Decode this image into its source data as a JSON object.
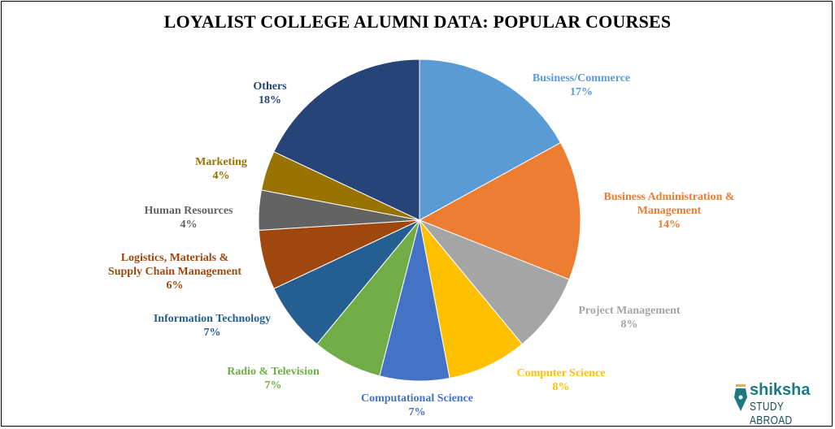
{
  "title": "LOYALIST COLLEGE ALUMNI DATA: POPULAR COURSES",
  "logo": {
    "name": "shiksha",
    "sub": "STUDY ABROAD"
  },
  "chart_data": {
    "type": "pie",
    "title": "LOYALIST COLLEGE ALUMNI DATA: POPULAR COURSES",
    "categories": [
      "Business/Commerce",
      "Business Administration & Management",
      "Project Management",
      "Computer Science",
      "Computational Science",
      "Radio & Television",
      "Information Technology",
      "Logistics, Materials & Supply Chain Management",
      "Human Resources",
      "Marketing",
      "Others"
    ],
    "values": [
      17,
      14,
      8,
      8,
      7,
      7,
      7,
      6,
      4,
      4,
      18
    ],
    "colors": [
      "#5b9bd5",
      "#ed7d31",
      "#a5a5a5",
      "#ffc000",
      "#4472c4",
      "#70ad47",
      "#255e91",
      "#9e480e",
      "#636363",
      "#997300",
      "#264478"
    ],
    "legend": "data labels outside slices"
  },
  "labels": [
    {
      "line1": "Business/Commerce",
      "line2": "17%"
    },
    {
      "line1": "Business Administration  &",
      "line2": "Management",
      "line3": "14%"
    },
    {
      "line1": "Project  Management",
      "line2": "8%"
    },
    {
      "line1": "Computer  Science",
      "line2": "8%"
    },
    {
      "line1": "Computational  Science",
      "line2": "7%"
    },
    {
      "line1": "Radio & Television",
      "line2": "7%"
    },
    {
      "line1": "Information  Technology",
      "line2": "7%"
    },
    {
      "line1": "Logistics, Materials &",
      "line2": "Supply  Chain  Management",
      "line3": "6%"
    },
    {
      "line1": "Human  Resources",
      "line2": "4%"
    },
    {
      "line1": "Marketing",
      "line2": "4%"
    },
    {
      "line1": "Others",
      "line2": "18%"
    }
  ]
}
